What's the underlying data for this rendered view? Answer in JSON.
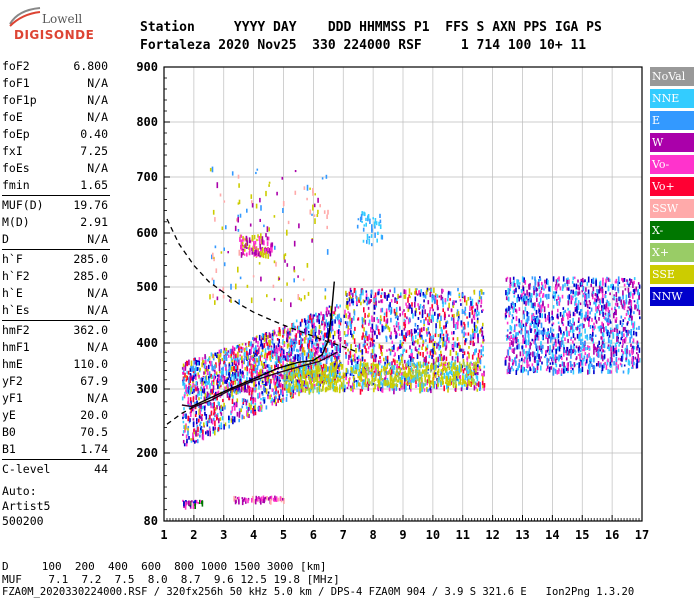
{
  "logo": {
    "brand_top": "Lowell",
    "brand_bottom": "DIGISONDE"
  },
  "header": {
    "labels": "Station     YYYY DAY    DDD HHMMSS P1  FFS S AXN PPS IGA PS",
    "values": "Fortaleza 2020 Nov25  330 224000 RSF     1 714 100 10+ 11"
  },
  "params": {
    "group1": [
      {
        "label": "foF2",
        "value": "6.800"
      },
      {
        "label": "foF1",
        "value": "N/A"
      },
      {
        "label": "foF1p",
        "value": "N/A"
      },
      {
        "label": "foE",
        "value": "N/A"
      },
      {
        "label": "foEp",
        "value": "0.40"
      },
      {
        "label": "fxI",
        "value": "7.25"
      },
      {
        "label": "foEs",
        "value": "N/A"
      },
      {
        "label": "fmin",
        "value": "1.65"
      }
    ],
    "group2": [
      {
        "label": "MUF(D)",
        "value": "19.76"
      },
      {
        "label": "M(D)",
        "value": "2.91"
      },
      {
        "label": "D",
        "value": "N/A"
      }
    ],
    "group3": [
      {
        "label": "h`F",
        "value": "285.0"
      },
      {
        "label": "h`F2",
        "value": "285.0"
      },
      {
        "label": "h`E",
        "value": "N/A"
      },
      {
        "label": "h`Es",
        "value": "N/A"
      }
    ],
    "group4": [
      {
        "label": "hmF2",
        "value": "362.0"
      },
      {
        "label": "hmF1",
        "value": "N/A"
      },
      {
        "label": "hmE",
        "value": "110.0"
      },
      {
        "label": "yF2",
        "value": "67.9"
      },
      {
        "label": "yF1",
        "value": "N/A"
      },
      {
        "label": "yE",
        "value": "20.0"
      },
      {
        "label": "B0",
        "value": "70.5"
      },
      {
        "label": "B1",
        "value": "1.74"
      }
    ],
    "group5": [
      {
        "label": "C-level",
        "value": "44"
      }
    ]
  },
  "autoscale": {
    "line1": "Auto:",
    "line2": "Artist5",
    "line3": "500200"
  },
  "legend": [
    {
      "label": "NoVal",
      "color": "#999999"
    },
    {
      "label": "NNE",
      "color": "#33ccff"
    },
    {
      "label": "E",
      "color": "#3399ff"
    },
    {
      "label": "W",
      "color": "#aa00aa"
    },
    {
      "label": "Vo-",
      "color": "#ff33cc"
    },
    {
      "label": "Vo+",
      "color": "#ff0033"
    },
    {
      "label": "SSW",
      "color": "#ffaaaa"
    },
    {
      "label": "X-",
      "color": "#007700"
    },
    {
      "label": "X+",
      "color": "#99cc66"
    },
    {
      "label": "SSE",
      "color": "#cccc00"
    },
    {
      "label": "NNW",
      "color": "#0000cc"
    }
  ],
  "chart_data": {
    "type": "scatter",
    "xlim": [
      1,
      17
    ],
    "ylim": [
      80,
      900
    ],
    "x_ticks": [
      "1",
      "2",
      "3",
      "4",
      "5",
      "6",
      "7",
      "8",
      "9",
      "10",
      "11",
      "12",
      "13",
      "14",
      "15",
      "16",
      "17"
    ],
    "y_ticks": [
      "80",
      "200",
      "300",
      "400",
      "500",
      "600",
      "700",
      "800",
      "900"
    ],
    "grid": true,
    "series": [
      {
        "name": "Profile",
        "points": [
          [
            1.9,
            272
          ],
          [
            2.5,
            285
          ],
          [
            3.2,
            300
          ],
          [
            4.0,
            322
          ],
          [
            4.8,
            345
          ],
          [
            5.5,
            358
          ],
          [
            6.0,
            362
          ],
          [
            6.3,
            375
          ],
          [
            6.5,
            405
          ],
          [
            6.6,
            450
          ],
          [
            6.7,
            510
          ]
        ]
      },
      {
        "name": "Trace",
        "points": [
          [
            1.6,
            275
          ],
          [
            2.0,
            272
          ],
          [
            2.6,
            283
          ],
          [
            3.2,
            298
          ],
          [
            4.0,
            318
          ],
          [
            4.8,
            335
          ],
          [
            5.5,
            348
          ],
          [
            6.2,
            360
          ],
          [
            6.8,
            380
          ]
        ]
      }
    ],
    "dashed_curve": [
      [
        1.1,
        625
      ],
      [
        1.5,
        580
      ],
      [
        2.0,
        540
      ],
      [
        2.5,
        510
      ],
      [
        3.0,
        490
      ],
      [
        3.5,
        470
      ],
      [
        4.0,
        455
      ],
      [
        4.5,
        443
      ],
      [
        5.0,
        432
      ],
      [
        5.5,
        422
      ],
      [
        6.0,
        412
      ],
      [
        6.5,
        402
      ],
      [
        7.0,
        392
      ],
      [
        7.5,
        380
      ]
    ],
    "lower_curve": [
      [
        1.1,
        245
      ],
      [
        1.6,
        262
      ],
      [
        2.0,
        272
      ]
    ]
  },
  "footer": {
    "d_row": "D     100  200  400  600  800 1000 1500 3000 [km]",
    "muf_row": "MUF    7.1  7.2  7.5  8.0  8.7  9.6 12.5 19.8 [MHz]",
    "file_row": "FZA0M_2020330224000.RSF / 320fx256h 50 kHz 5.0 km / DPS-4 FZA0M 904 / 3.9 S 321.6 E   Ion2Png 1.3.20"
  }
}
